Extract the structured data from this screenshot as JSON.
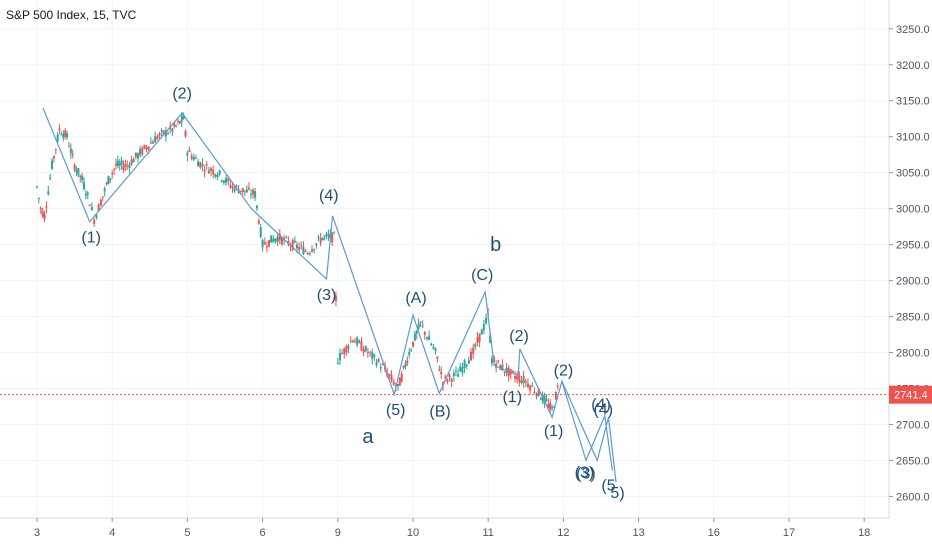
{
  "header": {
    "title": "S&P 500 Index, 15, TVC"
  },
  "colors": {
    "up": "#26a69a",
    "down": "#ef5350",
    "wave": "#5b9bd5",
    "label": "#1f4e79",
    "price_line": "#ef5350",
    "grid": "#f0f3fa",
    "axis_text": "#50535e"
  },
  "chart_data": {
    "type": "candlestick",
    "title": "S&P 500 Index, 15, TVC",
    "x_ticks": [
      "3",
      "4",
      "5",
      "6",
      "9",
      "10",
      "11",
      "12",
      "13",
      "16",
      "17",
      "18"
    ],
    "y_ticks": [
      3250,
      3200,
      3150,
      3100,
      3050,
      3000,
      2950,
      2900,
      2850,
      2800,
      2750,
      2700,
      2650,
      2600
    ],
    "ylim": [
      2570,
      3290
    ],
    "current_price": 2741.4,
    "current_price_label": "2741.4",
    "candle_path": [
      [
        0.0,
        3030
      ],
      [
        0.05,
        3000
      ],
      [
        0.1,
        2990
      ],
      [
        0.2,
        3060
      ],
      [
        0.3,
        3110
      ],
      [
        0.4,
        3100
      ],
      [
        0.5,
        3060
      ],
      [
        0.6,
        3040
      ],
      [
        0.7,
        3010
      ],
      [
        0.76,
        2985
      ],
      [
        0.85,
        3010
      ],
      [
        0.95,
        3040
      ],
      [
        1.05,
        3060
      ],
      [
        1.2,
        3060
      ],
      [
        1.4,
        3080
      ],
      [
        1.6,
        3100
      ],
      [
        1.8,
        3110
      ],
      [
        1.95,
        3125
      ],
      [
        2.0,
        3080
      ],
      [
        2.2,
        3060
      ],
      [
        2.4,
        3050
      ],
      [
        2.6,
        3030
      ],
      [
        2.9,
        3020
      ],
      [
        3.0,
        2950
      ],
      [
        3.2,
        2960
      ],
      [
        3.4,
        2950
      ],
      [
        3.6,
        2940
      ],
      [
        3.8,
        2960
      ],
      [
        3.95,
        2960
      ],
      [
        4.0,
        2790
      ],
      [
        4.2,
        2820
      ],
      [
        4.4,
        2800
      ],
      [
        4.6,
        2780
      ],
      [
        4.8,
        2750
      ],
      [
        4.95,
        2800
      ],
      [
        5.1,
        2840
      ],
      [
        5.3,
        2800
      ],
      [
        5.4,
        2760
      ],
      [
        5.6,
        2770
      ],
      [
        5.8,
        2800
      ],
      [
        6.0,
        2850
      ],
      [
        6.05,
        2790
      ],
      [
        6.3,
        2770
      ],
      [
        6.5,
        2760
      ],
      [
        6.7,
        2740
      ],
      [
        6.85,
        2720
      ],
      [
        6.95,
        2760
      ]
    ],
    "waves": [
      {
        "name": "primary",
        "points": [
          [
            0.08,
            3140
          ],
          [
            0.7,
            2982
          ],
          [
            1.93,
            3133
          ],
          [
            2.85,
            3000
          ],
          [
            3.85,
            2902
          ],
          [
            3.93,
            2990
          ],
          [
            4.75,
            2742
          ],
          [
            5.0,
            2852
          ],
          [
            5.35,
            2743
          ],
          [
            5.96,
            2884
          ],
          [
            6.08,
            2782
          ]
        ]
      },
      {
        "name": "small-1",
        "points": [
          [
            6.08,
            2782
          ],
          [
            6.4,
            2768
          ],
          [
            6.42,
            2805
          ],
          [
            6.85,
            2710
          ],
          [
            6.98,
            2760
          ],
          [
            7.3,
            2650
          ],
          [
            7.55,
            2712
          ],
          [
            7.65,
            2636
          ]
        ]
      },
      {
        "name": "small-2",
        "points": [
          [
            6.98,
            2760
          ],
          [
            7.45,
            2650
          ],
          [
            7.6,
            2710
          ],
          [
            7.7,
            2620
          ]
        ]
      }
    ],
    "annotations": [
      {
        "text": "(1)",
        "x": 0.72,
        "y": 2953,
        "size": 16
      },
      {
        "text": "(2)",
        "x": 1.93,
        "y": 3153,
        "size": 16
      },
      {
        "text": "(4)",
        "x": 3.88,
        "y": 3011,
        "size": 16
      },
      {
        "text": "(3)",
        "x": 3.85,
        "y": 2873,
        "size": 16
      },
      {
        "text": "(A)",
        "x": 5.04,
        "y": 2869,
        "size": 16
      },
      {
        "text": "(C)",
        "x": 5.92,
        "y": 2901,
        "size": 16
      },
      {
        "text": "b",
        "x": 6.1,
        "y": 2941,
        "size": 20
      },
      {
        "text": "(5)",
        "x": 4.77,
        "y": 2713,
        "size": 16
      },
      {
        "text": "(B)",
        "x": 5.36,
        "y": 2711,
        "size": 16
      },
      {
        "text": "a",
        "x": 4.4,
        "y": 2674,
        "size": 20
      },
      {
        "text": "(2)",
        "x": 6.41,
        "y": 2816,
        "size": 16
      },
      {
        "text": "(1)",
        "x": 6.32,
        "y": 2731,
        "size": 16
      },
      {
        "text": "(2)",
        "x": 7.0,
        "y": 2768,
        "size": 16
      },
      {
        "text": "(1)",
        "x": 6.87,
        "y": 2684,
        "size": 16
      },
      {
        "text": "(4)",
        "x": 7.5,
        "y": 2721,
        "size": 16
      },
      {
        "text": "(4)",
        "x": 7.53,
        "y": 2714,
        "size": 16
      },
      {
        "text": "(3)",
        "x": 7.28,
        "y": 2626,
        "size": 16
      },
      {
        "text": "(3)",
        "x": 7.3,
        "y": 2625,
        "size": 16
      },
      {
        "text": "(5",
        "x": 7.6,
        "y": 2608,
        "size": 16
      },
      {
        "text": "5)",
        "x": 7.72,
        "y": 2598,
        "size": 16
      }
    ]
  }
}
